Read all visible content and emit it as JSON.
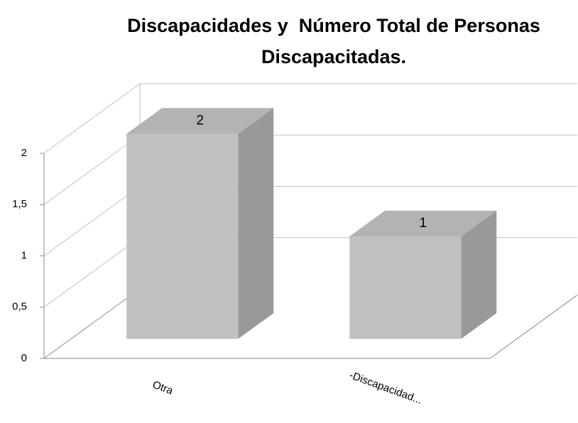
{
  "chart_data": {
    "type": "bar3d",
    "title": "Discapacidades y  Número Total de Personas Discapacitadas.",
    "categories": [
      "Otra",
      "-Discapacidad..."
    ],
    "values": [
      2,
      1
    ],
    "color": "#c0c0c0",
    "ylim": [
      0,
      2
    ],
    "yticks": [
      0,
      {
        "value": 0.5,
        "label": "0,5"
      },
      1,
      {
        "value": 1.5,
        "label": "1,5"
      },
      2
    ],
    "grid": true
  }
}
